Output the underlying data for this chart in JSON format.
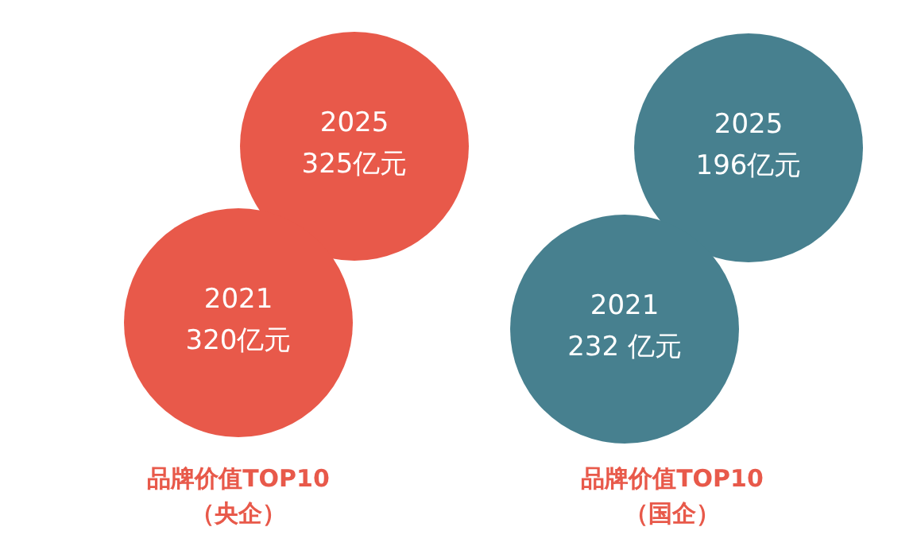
{
  "chart_data": [
    {
      "type": "other",
      "title": "品牌价值TOP10\n（央企）",
      "categories": [
        "2021",
        "2025"
      ],
      "values": [
        320,
        325
      ],
      "value_labels": [
        "320亿元",
        "325亿元"
      ],
      "color": "#e8594a"
    },
    {
      "type": "other",
      "title": "品牌价值TOP10\n（国企）",
      "categories": [
        "2021",
        "2025"
      ],
      "values": [
        232,
        196
      ],
      "value_labels": [
        "232 亿元",
        "196亿元"
      ],
      "color": "#47808f"
    }
  ]
}
